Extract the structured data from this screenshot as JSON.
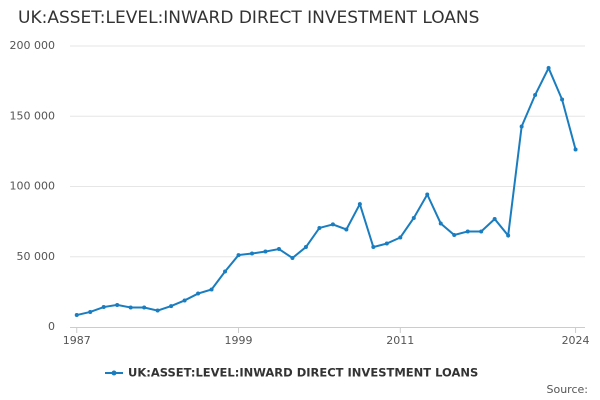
{
  "chart_data": {
    "type": "line",
    "title": "UK:ASSET:LEVEL:INWARD DIRECT INVESTMENT LOANS",
    "source": "Source:",
    "x": [
      1987,
      1988,
      1989,
      1990,
      1991,
      1992,
      1993,
      1994,
      1995,
      1996,
      1997,
      1998,
      1999,
      2000,
      2001,
      2002,
      2003,
      2004,
      2005,
      2006,
      2007,
      2008,
      2009,
      2010,
      2011,
      2012,
      2013,
      2014,
      2015,
      2016,
      2017,
      2018,
      2019,
      2020,
      2021,
      2022,
      2023,
      2024
    ],
    "series": [
      {
        "name": "UK:ASSET:LEVEL:INWARD DIRECT INVESTMENT LOANS",
        "color": "#1a7dbf",
        "values": [
          8500,
          10700,
          14200,
          15700,
          13900,
          13900,
          11700,
          14900,
          18900,
          23800,
          26700,
          39500,
          51200,
          52300,
          53700,
          55500,
          49100,
          56900,
          70500,
          73000,
          69400,
          87500,
          56900,
          59400,
          63700,
          77600,
          94300,
          73700,
          65500,
          68000,
          68000,
          76900,
          65100,
          142700,
          165100,
          184300,
          161900,
          126300
        ]
      }
    ],
    "xlim": [
      1986.5,
      2024.7
    ],
    "xticks": [
      1987,
      1999,
      2011,
      2024
    ],
    "ylim": [
      0,
      200000
    ],
    "yticks": [
      0,
      {
        "value": 50000,
        "label": "50 000"
      },
      {
        "value": 100000,
        "label": "100 000"
      },
      {
        "value": 150000,
        "label": "150 000"
      },
      {
        "value": 200000,
        "label": "200 000"
      }
    ],
    "grid": true
  }
}
